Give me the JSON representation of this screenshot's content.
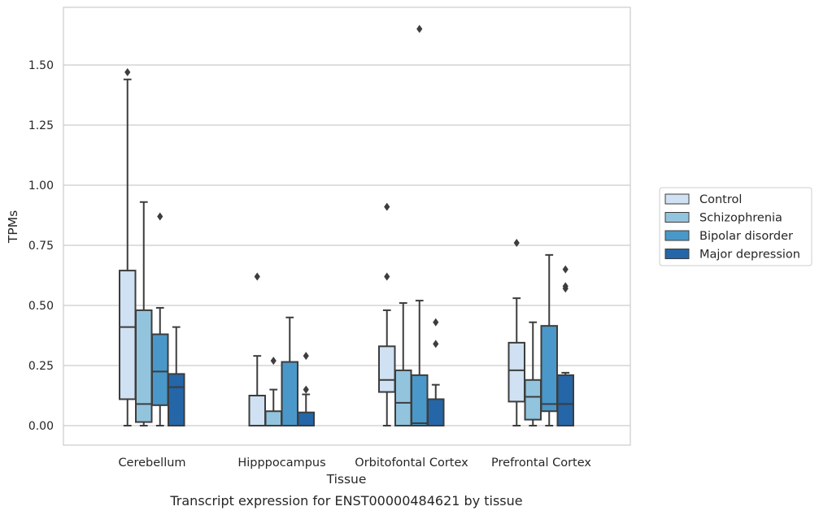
{
  "chart_data": {
    "type": "box",
    "caption": "Transcript expression for ENST00000484621 by tissue",
    "xlabel": "Tissue",
    "ylabel": "TPMs",
    "ylim": [
      -0.08,
      1.74
    ],
    "yticks": [
      0.0,
      0.25,
      0.5,
      0.75,
      1.0,
      1.25,
      1.5
    ],
    "ytick_labels": [
      "0.00",
      "0.25",
      "0.50",
      "0.75",
      "1.00",
      "1.25",
      "1.50"
    ],
    "grid": true,
    "legend_position": "right",
    "categories": [
      "Cerebellum",
      "Hipppocampus",
      "Orbitofontal Cortex",
      "Prefrontal Cortex"
    ],
    "series": [
      {
        "name": "Control",
        "color": "#cfe1f2",
        "boxes": [
          {
            "whislo": 0.0,
            "q1": 0.11,
            "med": 0.41,
            "q3": 0.645,
            "whishi": 1.44,
            "fliers": [
              1.47
            ]
          },
          {
            "whislo": 0.0,
            "q1": 0.0,
            "med": 0.0,
            "q3": 0.125,
            "whishi": 0.29,
            "fliers": [
              0.62
            ]
          },
          {
            "whislo": 0.0,
            "q1": 0.14,
            "med": 0.19,
            "q3": 0.33,
            "whishi": 0.48,
            "fliers": [
              0.62,
              0.91
            ]
          },
          {
            "whislo": 0.0,
            "q1": 0.1,
            "med": 0.23,
            "q3": 0.345,
            "whishi": 0.53,
            "fliers": [
              0.76
            ]
          }
        ]
      },
      {
        "name": "Schizophrenia",
        "color": "#93c4de",
        "boxes": [
          {
            "whislo": 0.0,
            "q1": 0.015,
            "med": 0.09,
            "q3": 0.48,
            "whishi": 0.93,
            "fliers": []
          },
          {
            "whislo": 0.0,
            "q1": 0.0,
            "med": 0.0,
            "q3": 0.06,
            "whishi": 0.15,
            "fliers": [
              0.27
            ]
          },
          {
            "whislo": 0.0,
            "q1": 0.0,
            "med": 0.095,
            "q3": 0.23,
            "whishi": 0.51,
            "fliers": []
          },
          {
            "whislo": 0.0,
            "q1": 0.025,
            "med": 0.12,
            "q3": 0.19,
            "whishi": 0.43,
            "fliers": []
          }
        ]
      },
      {
        "name": "Bipolar disorder",
        "color": "#4a98c9",
        "boxes": [
          {
            "whislo": 0.0,
            "q1": 0.085,
            "med": 0.225,
            "q3": 0.38,
            "whishi": 0.49,
            "fliers": [
              0.87
            ]
          },
          {
            "whislo": 0.0,
            "q1": 0.0,
            "med": 0.0,
            "q3": 0.265,
            "whishi": 0.45,
            "fliers": []
          },
          {
            "whislo": 0.0,
            "q1": 0.0,
            "med": 0.01,
            "q3": 0.21,
            "whishi": 0.52,
            "fliers": [
              1.65
            ]
          },
          {
            "whislo": 0.0,
            "q1": 0.06,
            "med": 0.09,
            "q3": 0.415,
            "whishi": 0.71,
            "fliers": []
          }
        ]
      },
      {
        "name": "Major depression",
        "color": "#2466a7",
        "boxes": [
          {
            "whislo": 0.0,
            "q1": 0.0,
            "med": 0.16,
            "q3": 0.215,
            "whishi": 0.41,
            "fliers": []
          },
          {
            "whislo": 0.0,
            "q1": 0.0,
            "med": 0.0,
            "q3": 0.055,
            "whishi": 0.13,
            "fliers": [
              0.15,
              0.29
            ]
          },
          {
            "whislo": 0.0,
            "q1": 0.0,
            "med": 0.0,
            "q3": 0.11,
            "whishi": 0.17,
            "fliers": [
              0.34,
              0.43
            ]
          },
          {
            "whislo": 0.0,
            "q1": 0.0,
            "med": 0.09,
            "q3": 0.21,
            "whishi": 0.22,
            "fliers": [
              0.57,
              0.58,
              0.65
            ]
          }
        ]
      }
    ]
  }
}
